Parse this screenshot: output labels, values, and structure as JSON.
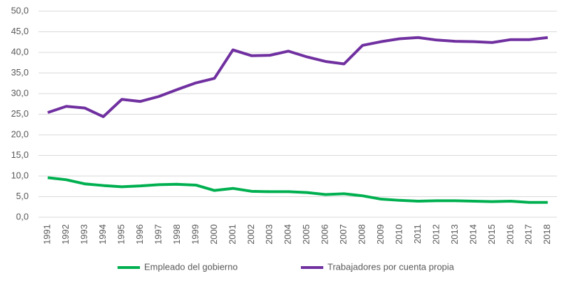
{
  "chart_data": {
    "type": "line",
    "categories": [
      "1991",
      "1992",
      "1993",
      "1994",
      "1995",
      "1996",
      "1997",
      "1998",
      "1999",
      "2000",
      "2001",
      "2002",
      "2003",
      "2004",
      "2005",
      "2006",
      "2007",
      "2008",
      "2009",
      "2010",
      "2011",
      "2012",
      "2013",
      "2014",
      "2015",
      "2016",
      "2017",
      "2018"
    ],
    "series": [
      {
        "name": "Empleado del gobierno",
        "color": "#00b050",
        "values": [
          9.6,
          9.1,
          8.1,
          7.7,
          7.4,
          7.6,
          7.9,
          8.0,
          7.8,
          6.5,
          7.0,
          6.3,
          6.2,
          6.2,
          6.0,
          5.5,
          5.7,
          5.2,
          4.4,
          4.1,
          3.9,
          4.0,
          4.0,
          3.9,
          3.8,
          3.9,
          3.6,
          3.6
        ]
      },
      {
        "name": "Trabajadores por cuenta propia",
        "color": "#7030a0",
        "values": [
          25.4,
          26.9,
          26.5,
          24.4,
          28.6,
          28.1,
          29.3,
          31.0,
          32.6,
          33.7,
          40.6,
          39.2,
          39.3,
          40.3,
          38.9,
          37.8,
          37.2,
          41.7,
          42.6,
          43.3,
          43.6,
          43.0,
          42.7,
          42.6,
          42.4,
          43.1,
          43.1,
          43.6
        ]
      }
    ],
    "ylim": [
      0,
      50
    ],
    "yticks": [
      {
        "value": 0,
        "label": "0,0"
      },
      {
        "value": 5,
        "label": "5,0"
      },
      {
        "value": 10,
        "label": "10,0"
      },
      {
        "value": 15,
        "label": "15,0"
      },
      {
        "value": 20,
        "label": "20,0"
      },
      {
        "value": 25,
        "label": "25,0"
      },
      {
        "value": 30,
        "label": "30,0"
      },
      {
        "value": 35,
        "label": "35,0"
      },
      {
        "value": 40,
        "label": "40,0"
      },
      {
        "value": 45,
        "label": "45,0"
      },
      {
        "value": 50,
        "label": "50,0"
      }
    ],
    "grid": true,
    "legend": "bottom"
  }
}
